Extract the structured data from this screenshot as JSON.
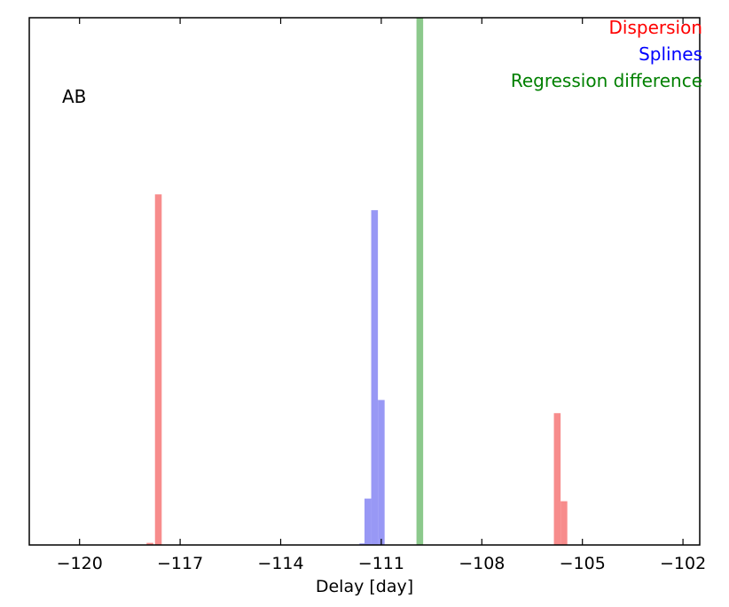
{
  "chart_data": {
    "type": "bar",
    "title": "",
    "xlabel": "Delay [day]",
    "ylabel": "",
    "panel_label": "AB",
    "xlim": [
      -121.5,
      -101.5
    ],
    "ylim": [
      0,
      1
    ],
    "xticks": [
      -120,
      -117,
      -114,
      -111,
      -108,
      -105,
      -102
    ],
    "xtick_labels": [
      "−120",
      "−117",
      "−114",
      "−111",
      "−108",
      "−105",
      "−102"
    ],
    "yticks_shown": false,
    "grid": false,
    "legend_placement": "top-right",
    "series": [
      {
        "name": "Dispersion",
        "color": "#ff0000",
        "bar_color": "#f78c8c",
        "bars": [
          {
            "x0": -118.0,
            "x1": -117.8,
            "value": 0.004
          },
          {
            "x0": -117.75,
            "x1": -117.55,
            "value": 0.665
          },
          {
            "x0": -105.85,
            "x1": -105.65,
            "value": 0.25
          },
          {
            "x0": -105.65,
            "x1": -105.45,
            "value": 0.083
          }
        ]
      },
      {
        "name": "Splines",
        "color": "#0000ff",
        "bar_color": "#9898f5",
        "bars": [
          {
            "x0": -111.65,
            "x1": -111.5,
            "value": 0.003
          },
          {
            "x0": -111.5,
            "x1": -111.3,
            "value": 0.088
          },
          {
            "x0": -111.3,
            "x1": -111.1,
            "value": 0.635
          },
          {
            "x0": -111.1,
            "x1": -110.9,
            "value": 0.275
          }
        ]
      },
      {
        "name": "Regression difference",
        "color": "#008000",
        "bar_color": "#8cc98c",
        "bars": [
          {
            "x0": -109.95,
            "x1": -109.75,
            "value": 1.0
          }
        ]
      }
    ]
  }
}
